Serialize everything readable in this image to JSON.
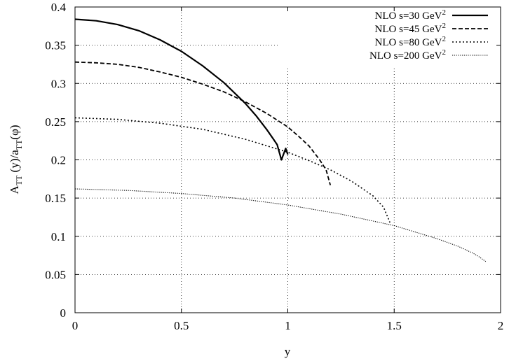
{
  "chart_data": {
    "type": "line",
    "title": "",
    "xlabel": "y",
    "ylabel": {
      "A": "A",
      "A_sub": "TT",
      "mid": " (y)/a",
      "a_sub": "TT",
      "end": "(φ)"
    },
    "xlim": [
      0,
      2
    ],
    "ylim": [
      0,
      0.4
    ],
    "x_ticks": [
      0,
      0.5,
      1,
      1.5,
      2
    ],
    "x_tick_labels": [
      "0",
      "0.5",
      "1",
      "1.5",
      "2"
    ],
    "y_ticks": [
      0,
      0.05,
      0.1,
      0.15,
      0.2,
      0.25,
      0.3,
      0.35,
      0.4
    ],
    "y_tick_labels": [
      "0",
      "0.05",
      "0.1",
      "0.15",
      "0.2",
      "0.25",
      "0.3",
      "0.35",
      "0.4"
    ],
    "grid": true,
    "legend_position": "top-right",
    "series": [
      {
        "label": "NLO s=30 GeV",
        "sup": "2",
        "style": "solid",
        "stroke_width": 2.2,
        "x": [
          0,
          0.1,
          0.2,
          0.3,
          0.4,
          0.5,
          0.6,
          0.7,
          0.8,
          0.85,
          0.9,
          0.93,
          0.95,
          0.97,
          0.99,
          1.0
        ],
        "y": [
          0.384,
          0.382,
          0.377,
          0.369,
          0.357,
          0.342,
          0.323,
          0.301,
          0.274,
          0.258,
          0.24,
          0.228,
          0.22,
          0.2,
          0.215,
          0.207
        ]
      },
      {
        "label": "NLO s=45 GeV",
        "sup": "2",
        "style": "dashed",
        "stroke_width": 1.8,
        "x": [
          0,
          0.1,
          0.2,
          0.3,
          0.4,
          0.5,
          0.6,
          0.7,
          0.8,
          0.9,
          1.0,
          1.05,
          1.1,
          1.15,
          1.18,
          1.2
        ],
        "y": [
          0.328,
          0.327,
          0.325,
          0.321,
          0.315,
          0.308,
          0.299,
          0.289,
          0.276,
          0.261,
          0.243,
          0.231,
          0.218,
          0.2,
          0.187,
          0.167
        ]
      },
      {
        "label": "NLO s=80 GeV",
        "sup": "2",
        "style": "dotted",
        "stroke_width": 1.6,
        "x": [
          0,
          0.2,
          0.4,
          0.6,
          0.8,
          1.0,
          1.1,
          1.2,
          1.3,
          1.4,
          1.45,
          1.48
        ],
        "y": [
          0.255,
          0.253,
          0.248,
          0.24,
          0.227,
          0.21,
          0.199,
          0.187,
          0.172,
          0.153,
          0.138,
          0.118
        ]
      },
      {
        "label": "NLO s=200 GeV",
        "sup": "2",
        "style": "finedotted",
        "stroke_width": 1.1,
        "x": [
          0,
          0.25,
          0.5,
          0.75,
          1.0,
          1.25,
          1.5,
          1.7,
          1.8,
          1.87,
          1.9,
          1.93
        ],
        "y": [
          0.162,
          0.16,
          0.156,
          0.15,
          0.141,
          0.129,
          0.114,
          0.097,
          0.087,
          0.078,
          0.073,
          0.067
        ]
      }
    ]
  }
}
